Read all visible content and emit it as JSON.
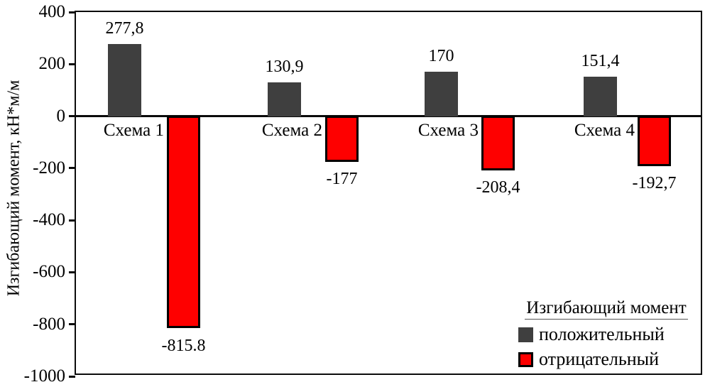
{
  "chart_data": {
    "type": "bar",
    "title": "",
    "ylabel": "Изгибающий момент, кН*м/м",
    "xlabel": "",
    "ylim": [
      -1000,
      400
    ],
    "ytick_step": 200,
    "yticks": [
      400,
      200,
      0,
      -200,
      -400,
      -600,
      -800,
      -1000
    ],
    "grid": false,
    "categories": [
      "Схема 1",
      "Схема 2",
      "Схема 3",
      "Схема 4"
    ],
    "series": [
      {
        "name": "положительный",
        "color": "#3f3f3f",
        "values": [
          277.8,
          130.9,
          170,
          151.4
        ],
        "labels": [
          "277,8",
          "130,9",
          "170",
          "151,4"
        ]
      },
      {
        "name": "отрицательный",
        "color": "#fe0000",
        "values": [
          -815.8,
          -177,
          -208.4,
          -192.7
        ],
        "labels": [
          "-815.8",
          "-177",
          "-208,4",
          "-192,7"
        ]
      }
    ],
    "legend": {
      "title": "Изгибающий момент",
      "position": "bottom-right"
    }
  }
}
